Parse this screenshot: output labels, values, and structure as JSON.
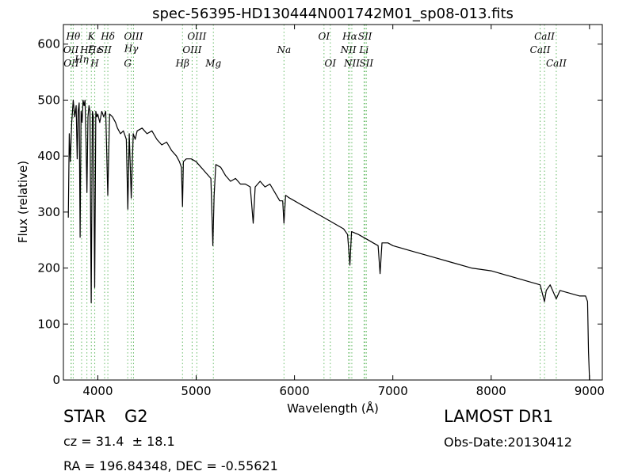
{
  "chart_data": {
    "type": "line",
    "title": "spec-56395-HD130444N001742M01_sp08-013.fits",
    "xlabel": "Wavelength (Å)",
    "ylabel": "Flux (relative)",
    "xlim": [
      3650,
      9130
    ],
    "ylim": [
      0,
      635
    ],
    "xticks": [
      4000,
      5000,
      6000,
      7000,
      8000,
      9000
    ],
    "yticks": [
      0,
      100,
      200,
      300,
      400,
      500,
      600
    ],
    "grid": false,
    "line_color": "#000000",
    "marker_color": "#66bb66",
    "series": [
      {
        "x": [
          3700,
          3710,
          3720,
          3735,
          3750,
          3765,
          3780,
          3790,
          3800,
          3810,
          3820,
          3830,
          3840,
          3850,
          3860,
          3870,
          3880,
          3889,
          3900,
          3910,
          3920,
          3933,
          3945,
          3955,
          3968,
          3980,
          3990,
          4000,
          4020,
          4040,
          4060,
          4080,
          4101,
          4120,
          4150,
          4180,
          4200,
          4230,
          4260,
          4290,
          4305,
          4320,
          4340,
          4360,
          4380,
          4400,
          4450,
          4500,
          4550,
          4600,
          4650,
          4700,
          4750,
          4800,
          4830,
          4850,
          4861,
          4870,
          4900,
          4950,
          5000,
          5050,
          5100,
          5150,
          5170,
          5183,
          5200,
          5250,
          5300,
          5350,
          5400,
          5450,
          5500,
          5550,
          5580,
          5600,
          5650,
          5700,
          5750,
          5800,
          5850,
          5880,
          5893,
          5910,
          5950,
          6000,
          6100,
          6200,
          6300,
          6400,
          6500,
          6540,
          6563,
          6580,
          6650,
          6700,
          6750,
          6800,
          6850,
          6870,
          6890,
          6950,
          7000,
          7200,
          7400,
          7600,
          7800,
          8000,
          8200,
          8400,
          8498,
          8542,
          8560,
          8600,
          8662,
          8700,
          8800,
          8900,
          8960,
          8980,
          8990,
          9000,
          9010
        ],
        "y": [
          290,
          440,
          390,
          460,
          500,
          470,
          490,
          395,
          480,
          495,
          255,
          480,
          460,
          500,
          490,
          500,
          430,
          335,
          470,
          490,
          480,
          138,
          480,
          470,
          165,
          480,
          470,
          475,
          460,
          480,
          470,
          480,
          330,
          475,
          470,
          460,
          450,
          440,
          445,
          430,
          305,
          440,
          325,
          440,
          430,
          445,
          450,
          440,
          445,
          430,
          420,
          425,
          410,
          400,
          390,
          380,
          310,
          390,
          395,
          395,
          390,
          380,
          370,
          360,
          240,
          330,
          385,
          380,
          365,
          355,
          360,
          350,
          350,
          345,
          280,
          345,
          355,
          345,
          350,
          335,
          320,
          320,
          280,
          330,
          325,
          320,
          310,
          300,
          290,
          280,
          270,
          260,
          205,
          265,
          260,
          255,
          250,
          245,
          240,
          190,
          245,
          245,
          240,
          230,
          220,
          210,
          200,
          195,
          185,
          175,
          170,
          140,
          160,
          170,
          145,
          160,
          155,
          150,
          150,
          140,
          50,
          0,
          0
        ]
      }
    ],
    "line_markers": [
      {
        "x": 3727,
        "label": "OII",
        "row": 1
      },
      {
        "x": 3730,
        "label": "OII",
        "row": 2
      },
      {
        "x": 3750,
        "label": "Hθ",
        "row": 0
      },
      {
        "x": 3835,
        "label": "Hη",
        "row": 1.7
      },
      {
        "x": 3889,
        "label": "Hζ",
        "row": 1
      },
      {
        "x": 3934,
        "label": "K",
        "row": 0
      },
      {
        "x": 3968,
        "label": "H",
        "row": 2
      },
      {
        "x": 3969,
        "label": "Hε",
        "row": 1
      },
      {
        "x": 4069,
        "label": "SII",
        "row": 1
      },
      {
        "x": 4102,
        "label": "Hδ",
        "row": 0
      },
      {
        "x": 4304,
        "label": "G",
        "row": 2
      },
      {
        "x": 4340,
        "label": "Hγ",
        "row": 0.9
      },
      {
        "x": 4363,
        "label": "OIII",
        "row": 0
      },
      {
        "x": 4861,
        "label": "Hβ",
        "row": 2
      },
      {
        "x": 4959,
        "label": "OIII",
        "row": 1
      },
      {
        "x": 5007,
        "label": "OIII",
        "row": 0
      },
      {
        "x": 5175,
        "label": "Mg",
        "row": 2
      },
      {
        "x": 5893,
        "label": "Na",
        "row": 1
      },
      {
        "x": 6300,
        "label": "OI",
        "row": 0
      },
      {
        "x": 6364,
        "label": "OI",
        "row": 2
      },
      {
        "x": 6548,
        "label": "NII",
        "row": 1
      },
      {
        "x": 6563,
        "label": "Hα",
        "row": 0
      },
      {
        "x": 6583,
        "label": "NII",
        "row": 2
      },
      {
        "x": 6707,
        "label": "Li",
        "row": 1
      },
      {
        "x": 6717,
        "label": "SII",
        "row": 0
      },
      {
        "x": 6731,
        "label": "SII",
        "row": 2
      },
      {
        "x": 8498,
        "label": "CaII",
        "row": 1
      },
      {
        "x": 8542,
        "label": "CaII",
        "row": 0
      },
      {
        "x": 8662,
        "label": "CaII",
        "row": 2
      }
    ]
  },
  "footer": {
    "class_label": "STAR",
    "subclass_label": "G2",
    "cz_text": "cz = 31.4  ± 18.1",
    "ra_dec_text": "RA = 196.84348, DEC = -0.55621",
    "survey_text": "LAMOST DR1",
    "obs_date_text": "Obs-Date:20130412"
  }
}
